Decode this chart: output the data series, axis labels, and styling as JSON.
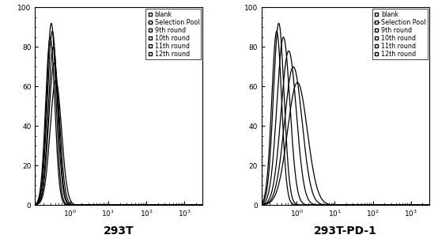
{
  "panel1_title": "293T",
  "panel2_title": "293T-PD-1",
  "legend_labels": [
    "blank",
    "Selection Pool",
    "9th round",
    "10th round",
    "11th round",
    "12th round"
  ],
  "ylim": [
    0,
    100
  ],
  "xlim": [
    0.12,
    3000
  ],
  "yticks": [
    0,
    20,
    40,
    60,
    80,
    100
  ],
  "background_color": "#ffffff",
  "line_color": "#000000",
  "title_fontsize": 10,
  "label_fontsize": 6.5,
  "legend_fontsize": 5.8,
  "panel1_peaks": [
    0.3,
    0.32,
    0.34,
    0.36,
    0.38,
    0.42
  ],
  "panel1_widths": [
    0.12,
    0.12,
    0.13,
    0.13,
    0.14,
    0.15
  ],
  "panel1_heights": [
    85,
    92,
    88,
    80,
    72,
    63
  ],
  "panel2_peaks": [
    0.3,
    0.34,
    0.45,
    0.62,
    0.82,
    1.05
  ],
  "panel2_widths": [
    0.13,
    0.14,
    0.17,
    0.2,
    0.23,
    0.26
  ],
  "panel2_heights": [
    88,
    92,
    85,
    78,
    70,
    62
  ]
}
